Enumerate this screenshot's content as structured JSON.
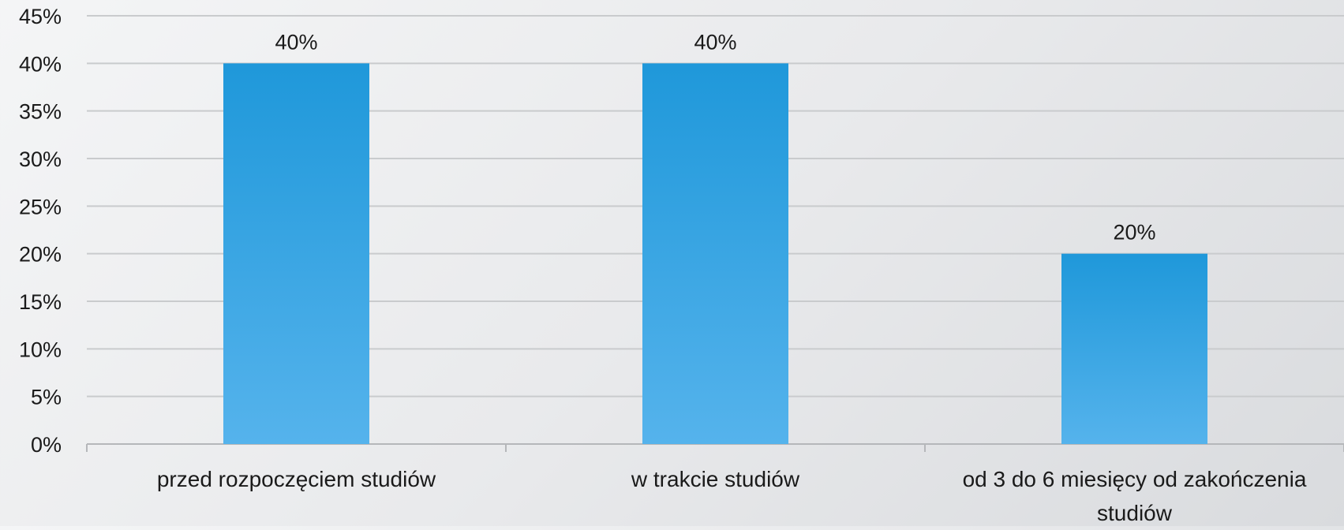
{
  "chart_data": {
    "type": "bar",
    "title": "",
    "xlabel": "",
    "ylabel": "",
    "categories": [
      [
        "przed rozpoczęciem studiów"
      ],
      [
        "w trakcie studiów"
      ],
      [
        "od 3 do 6 miesięcy od zakończenia",
        "studiów"
      ]
    ],
    "values": [
      40,
      40,
      20
    ],
    "data_labels": [
      "40%",
      "40%",
      "20%"
    ],
    "ylim": [
      0,
      45
    ],
    "y_ticks": [
      0,
      5,
      10,
      15,
      20,
      25,
      30,
      35,
      40,
      45
    ],
    "y_tick_labels": [
      "0%",
      "5%",
      "10%",
      "15%",
      "20%",
      "25%",
      "30%",
      "35%",
      "40%",
      "45%"
    ],
    "grid": true,
    "legend": "none",
    "colors": {
      "bar_top": "#1f98da",
      "bar_bottom": "#55b3ec",
      "grid": "#c9cbcd",
      "axis": "#b5b7ba",
      "text": "#1a1a1a"
    }
  }
}
